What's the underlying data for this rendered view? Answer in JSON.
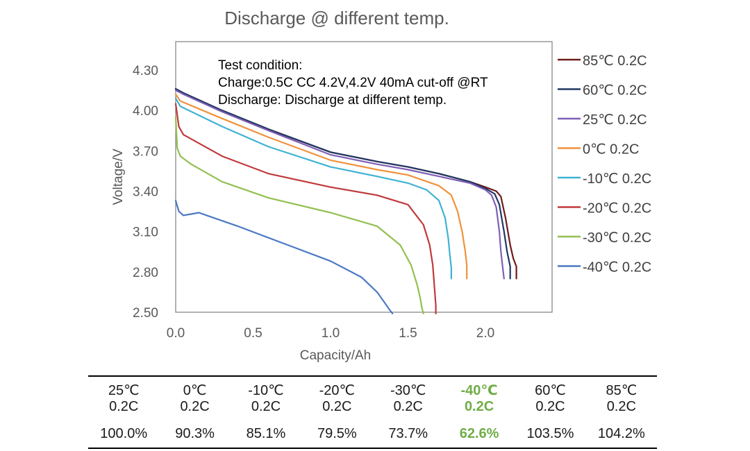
{
  "colors": {
    "85C": "#6e1a1a",
    "60C": "#1f3864",
    "25C": "#7f5fb5",
    "0C": "#f0923a",
    "-10C": "#3fb2d4",
    "-20C": "#c0393b",
    "-30C": "#92c050",
    "-40C": "#4a79c4",
    "highlight": "#70ad47"
  },
  "chart_data": {
    "type": "line",
    "title": "Discharge @ different temp.",
    "xlabel": "Capacity/Ah",
    "ylabel": "Voltage/V",
    "xlim": [
      0.0,
      2.5
    ],
    "ylim": [
      2.5,
      4.45
    ],
    "xticks": [
      "0.0",
      "0.5",
      "1.0",
      "1.5",
      "2.0"
    ],
    "xtick_values": [
      0.0,
      0.5,
      1.0,
      1.5,
      2.0
    ],
    "yticks": [
      "2.50",
      "2.80",
      "3.10",
      "3.40",
      "3.70",
      "4.00",
      "4.30"
    ],
    "ytick_values": [
      2.5,
      2.8,
      3.1,
      3.4,
      3.7,
      4.0,
      4.3
    ],
    "grid": false,
    "legend_position": "right",
    "annotation": [
      "Test condition:",
      "Charge:0.5C CC 4.2V,4.2V 40mA cut-off @RT",
      "Discharge:  Discharge at different temp."
    ],
    "series": [
      {
        "name": "85℃ 0.2C",
        "color_key": "85C",
        "x": [
          0.0,
          0.05,
          0.3,
          0.6,
          1.0,
          1.3,
          1.5,
          1.7,
          1.9,
          2.0,
          2.07,
          2.1,
          2.13,
          2.16,
          2.18,
          2.2,
          2.2
        ],
        "y": [
          4.16,
          4.13,
          4.0,
          3.86,
          3.69,
          3.62,
          3.58,
          3.53,
          3.47,
          3.43,
          3.4,
          3.36,
          3.2,
          3.0,
          2.9,
          2.84,
          2.75
        ]
      },
      {
        "name": "60℃ 0.2C",
        "color_key": "60C",
        "x": [
          0.0,
          0.05,
          0.3,
          0.6,
          1.0,
          1.3,
          1.5,
          1.7,
          1.9,
          2.0,
          2.06,
          2.09,
          2.12,
          2.14,
          2.16,
          2.16
        ],
        "y": [
          4.16,
          4.13,
          4.0,
          3.86,
          3.69,
          3.62,
          3.58,
          3.53,
          3.47,
          3.42,
          3.38,
          3.3,
          3.1,
          2.95,
          2.84,
          2.75
        ]
      },
      {
        "name": "25℃ 0.2C",
        "color_key": "25C",
        "x": [
          0.0,
          0.05,
          0.3,
          0.6,
          1.0,
          1.3,
          1.5,
          1.7,
          1.9,
          2.0,
          2.04,
          2.07,
          2.09,
          2.1,
          2.11,
          2.12
        ],
        "y": [
          4.15,
          4.12,
          3.99,
          3.85,
          3.67,
          3.6,
          3.56,
          3.51,
          3.46,
          3.41,
          3.37,
          3.28,
          3.1,
          2.95,
          2.85,
          2.75
        ]
      },
      {
        "name": "0℃ 0.2C",
        "color_key": "0C",
        "x": [
          0.0,
          0.03,
          0.3,
          0.6,
          1.0,
          1.3,
          1.5,
          1.7,
          1.78,
          1.82,
          1.85,
          1.87,
          1.88,
          1.88
        ],
        "y": [
          4.12,
          4.07,
          3.94,
          3.8,
          3.63,
          3.56,
          3.52,
          3.44,
          3.37,
          3.25,
          3.1,
          2.95,
          2.85,
          2.75
        ]
      },
      {
        "name": "-10℃ 0.2C",
        "color_key": "-10C",
        "x": [
          0.0,
          0.03,
          0.3,
          0.6,
          1.0,
          1.3,
          1.5,
          1.62,
          1.7,
          1.74,
          1.76,
          1.77,
          1.78,
          1.78
        ],
        "y": [
          4.09,
          4.03,
          3.88,
          3.73,
          3.58,
          3.51,
          3.46,
          3.41,
          3.33,
          3.2,
          3.05,
          2.93,
          2.83,
          2.75
        ]
      },
      {
        "name": "-20℃ 0.2C",
        "color_key": "-20C",
        "x": [
          0.0,
          0.02,
          0.05,
          0.3,
          0.6,
          1.0,
          1.3,
          1.5,
          1.6,
          1.64,
          1.66,
          1.67,
          1.68,
          1.68
        ],
        "y": [
          4.05,
          3.88,
          3.82,
          3.66,
          3.53,
          3.43,
          3.37,
          3.3,
          3.15,
          3.0,
          2.85,
          2.7,
          2.55,
          2.49
        ]
      },
      {
        "name": "-30℃ 0.2C",
        "color_key": "-30C",
        "x": [
          0.0,
          0.01,
          0.03,
          0.1,
          0.3,
          0.6,
          1.0,
          1.3,
          1.45,
          1.52,
          1.56,
          1.58,
          1.59,
          1.6
        ],
        "y": [
          3.95,
          3.72,
          3.66,
          3.6,
          3.47,
          3.35,
          3.24,
          3.14,
          3.0,
          2.85,
          2.7,
          2.6,
          2.53,
          2.49
        ]
      },
      {
        "name": "-40℃ 0.2C",
        "color_key": "-40C",
        "x": [
          0.0,
          0.02,
          0.05,
          0.1,
          0.15,
          0.2,
          0.4,
          0.7,
          1.0,
          1.2,
          1.3,
          1.35,
          1.38,
          1.4
        ],
        "y": [
          3.33,
          3.25,
          3.22,
          3.23,
          3.24,
          3.22,
          3.14,
          3.01,
          2.88,
          2.76,
          2.65,
          2.57,
          2.52,
          2.49
        ]
      }
    ]
  },
  "table": {
    "temps": [
      "25℃",
      "0℃",
      "-10℃",
      "-20℃",
      "-30℃",
      "-40℃",
      "60℃",
      "85℃"
    ],
    "rates": [
      "0.2C",
      "0.2C",
      "0.2C",
      "0.2C",
      "0.2C",
      "0.2C",
      "0.2C",
      "0.2C"
    ],
    "percents": [
      "100.0%",
      "90.3%",
      "85.1%",
      "79.5%",
      "73.7%",
      "62.6%",
      "103.5%",
      "104.2%"
    ],
    "highlight_index": 5
  }
}
